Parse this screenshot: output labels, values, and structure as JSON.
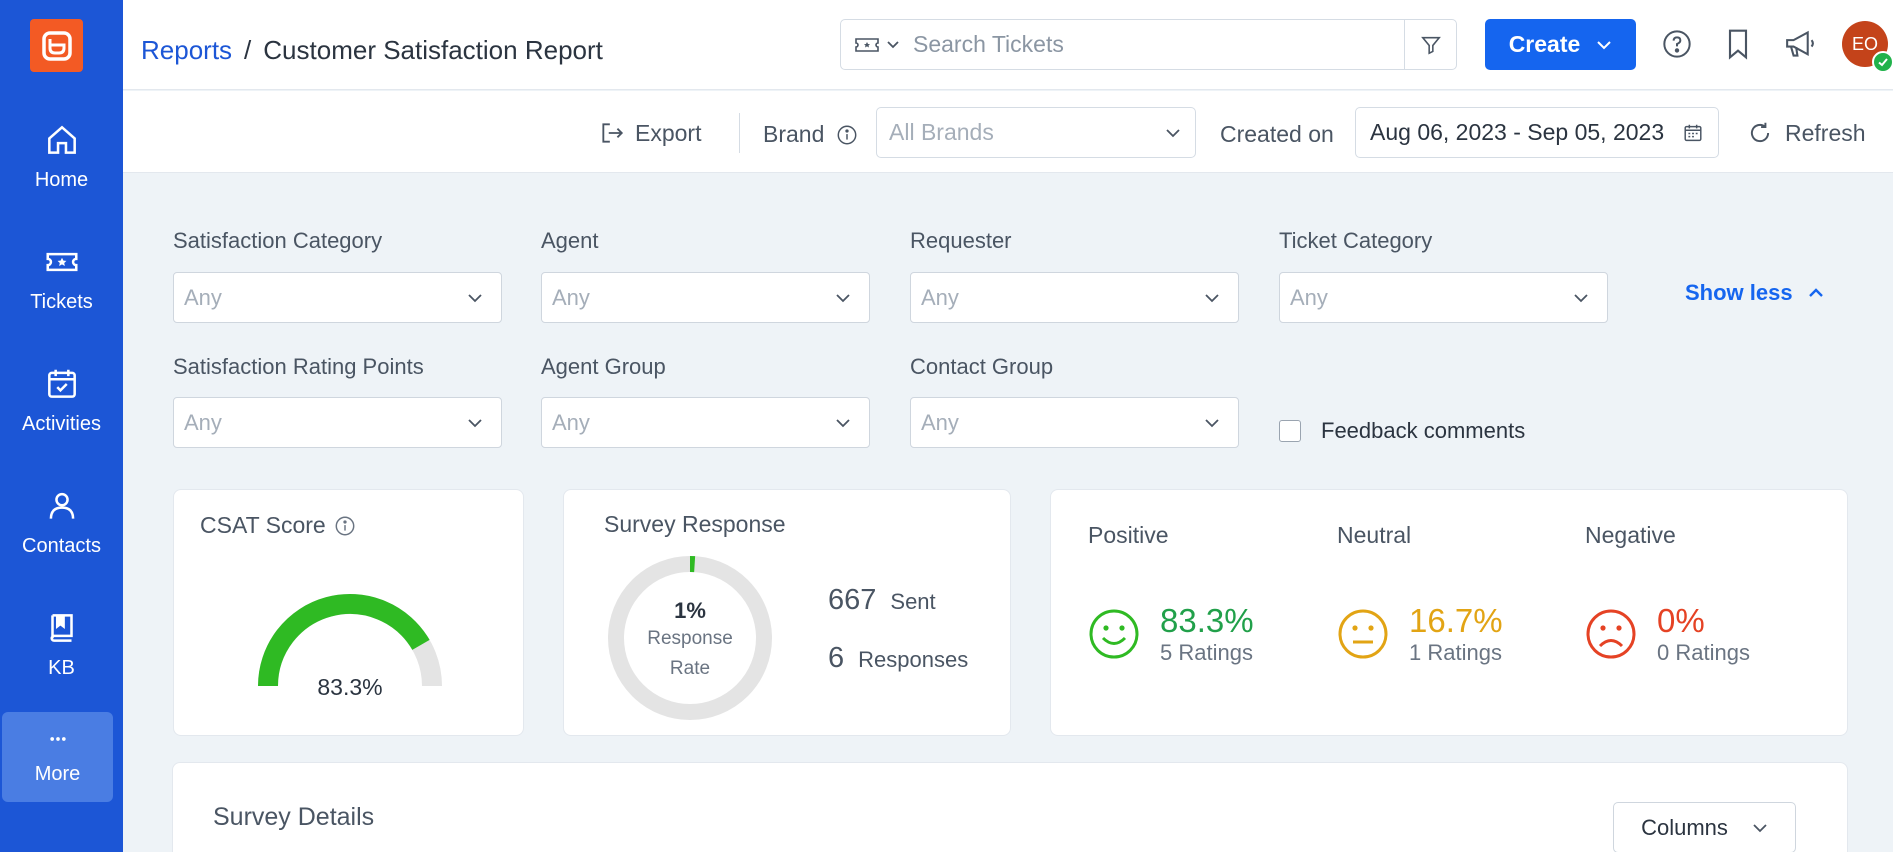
{
  "sidebar": {
    "logo": "app-logo",
    "items": [
      {
        "label": "Home",
        "icon": "home-icon"
      },
      {
        "label": "Tickets",
        "icon": "ticket-icon"
      },
      {
        "label": "Activities",
        "icon": "calendar-check-icon"
      },
      {
        "label": "Contacts",
        "icon": "person-icon"
      },
      {
        "label": "KB",
        "icon": "book-icon"
      },
      {
        "label": "More",
        "icon": "more-dots-icon"
      }
    ]
  },
  "header": {
    "breadcrumb_parent": "Reports",
    "breadcrumb_sep": "/",
    "title": "Customer Satisfaction Report",
    "search_placeholder": "Search Tickets",
    "create_label": "Create",
    "avatar_initials": "EO"
  },
  "toolbar": {
    "export_label": "Export",
    "brand_label": "Brand",
    "brand_placeholder": "All Brands",
    "created_on_label": "Created on",
    "date_range": "Aug 06, 2023 - Sep 05, 2023",
    "refresh_label": "Refresh"
  },
  "filters": {
    "satisfaction_category": {
      "label": "Satisfaction Category",
      "value": "Any"
    },
    "agent": {
      "label": "Agent",
      "value": "Any"
    },
    "requester": {
      "label": "Requester",
      "value": "Any"
    },
    "ticket_category": {
      "label": "Ticket Category",
      "value": "Any"
    },
    "satisfaction_rating_points": {
      "label": "Satisfaction Rating Points",
      "value": "Any"
    },
    "agent_group": {
      "label": "Agent Group",
      "value": "Any"
    },
    "contact_group": {
      "label": "Contact Group",
      "value": "Any"
    },
    "show_less_label": "Show less",
    "feedback_comments_label": "Feedback comments",
    "feedback_comments_checked": false
  },
  "csat": {
    "title": "CSAT Score",
    "value": "83.3%",
    "fraction": 0.833,
    "fill_color": "#2fba23",
    "track_color": "#e4e4e4"
  },
  "survey": {
    "title": "Survey Response",
    "rate": "1%",
    "rate_label_1": "Response",
    "rate_label_2": "Rate",
    "rate_fraction": 0.01,
    "sent_count": "667",
    "sent_label": "Sent",
    "responses_count": "6",
    "responses_label": "Responses"
  },
  "sentiment": {
    "positive": {
      "label": "Positive",
      "pct": "83.3%",
      "count": "5 Ratings",
      "color": "#2fba23",
      "pct_color": "#21a04a",
      "icon": "smile-icon"
    },
    "neutral": {
      "label": "Neutral",
      "pct": "16.7%",
      "count": "1 Ratings",
      "color": "#e2a414",
      "pct_color": "#e2a414",
      "icon": "neutral-face-icon"
    },
    "negative": {
      "label": "Negative",
      "pct": "0%",
      "count": "0 Ratings",
      "color": "#e54224",
      "pct_color": "#e54224",
      "icon": "frown-icon"
    }
  },
  "details": {
    "title": "Survey Details",
    "columns_label": "Columns"
  },
  "colors": {
    "sidebar": "#1c56d6",
    "accent": "#1565ef",
    "logo": "#f35a24"
  }
}
